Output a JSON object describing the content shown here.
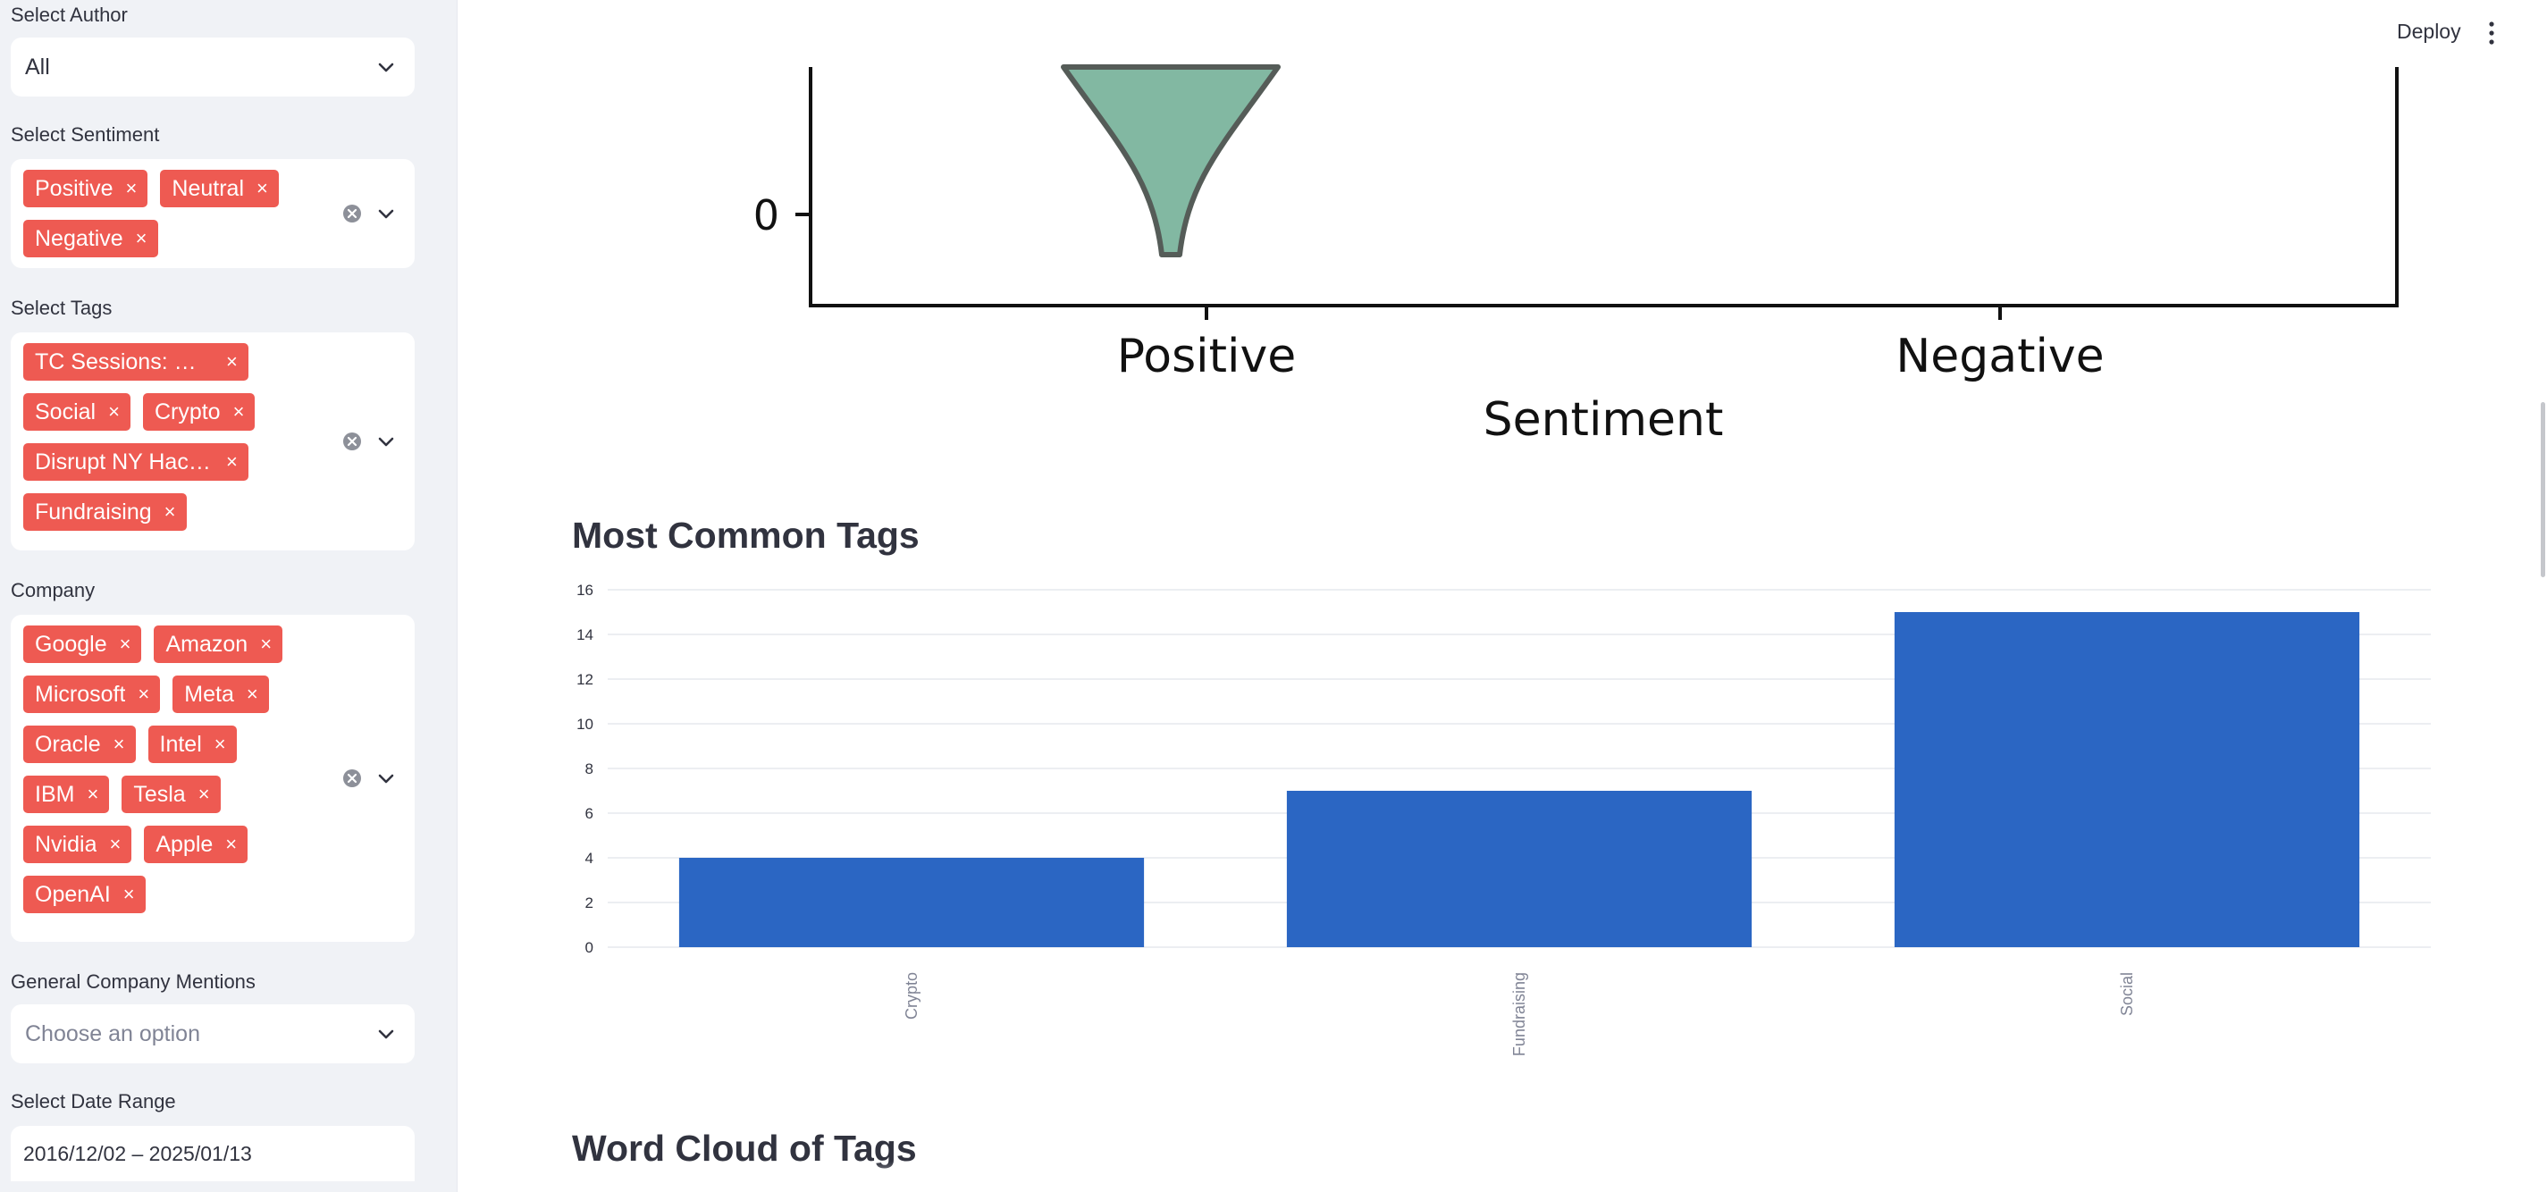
{
  "header": {
    "deploy_label": "Deploy",
    "menu_icon": "vertical-ellipsis-icon"
  },
  "sidebar": {
    "author": {
      "label": "Select Author",
      "value": "All"
    },
    "sentiment": {
      "label": "Select Sentiment",
      "tags": [
        "Positive",
        "Neutral",
        "Negative"
      ]
    },
    "tags_filter": {
      "label": "Select Tags",
      "tags": [
        "TC Sessions: Mo…",
        "Social",
        "Crypto",
        "Disrupt NY Hack…",
        "Fundraising"
      ]
    },
    "company": {
      "label": "Company",
      "tags": [
        "Google",
        "Amazon",
        "Microsoft",
        "Meta",
        "Oracle",
        "Intel",
        "IBM",
        "Tesla",
        "Nvidia",
        "Apple",
        "OpenAI"
      ]
    },
    "general_mentions": {
      "label": "General Company Mentions",
      "placeholder": "Choose an option"
    },
    "date_range": {
      "label": "Select Date Range",
      "value": "2016/12/02 – 2025/01/13"
    },
    "remove_glyph": "×"
  },
  "violin_plot": {
    "categories": [
      "Positive",
      "Negative"
    ],
    "xlabel": "Sentiment",
    "visible_ytick": "0",
    "fill_color": "#82b8a2"
  },
  "sections": {
    "common_tags_title": "Most Common Tags",
    "word_cloud_title": "Word Cloud of Tags"
  },
  "chart_data": {
    "type": "bar",
    "categories": [
      "Crypto",
      "Fundraising",
      "Social"
    ],
    "values": [
      4,
      7,
      15
    ],
    "title": "",
    "xlabel": "",
    "ylabel": "",
    "ylim": [
      0,
      16
    ],
    "yticks": [
      0,
      2,
      4,
      6,
      8,
      10,
      12,
      14,
      16
    ],
    "grid": true,
    "bar_color": "#2b66c3"
  }
}
